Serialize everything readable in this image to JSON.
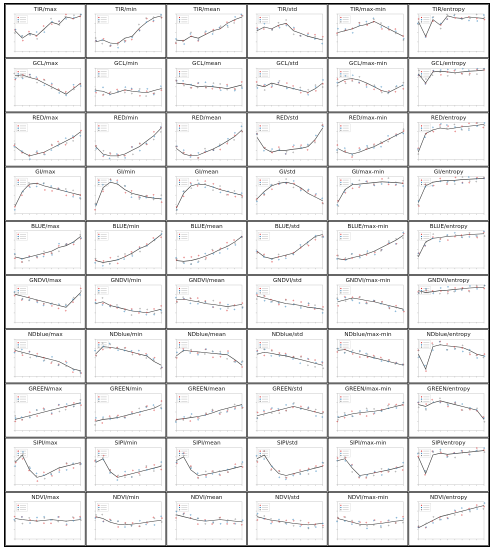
{
  "chart_data": {
    "type": "line",
    "layout": "grid",
    "rows": [
      "TIR",
      "GCL",
      "RED",
      "GI",
      "BLUE",
      "GNDVI",
      "NDblue",
      "GREEN",
      "SIPI",
      "NDVI"
    ],
    "columns": [
      "max",
      "min",
      "mean",
      "std",
      "max-min",
      "entropy"
    ],
    "titles": [
      [
        "TIR/max",
        "TIR/min",
        "TIR/mean",
        "TIR/std",
        "TIR/max-min",
        "TIR/entropy"
      ],
      [
        "GCL/max",
        "GCL/min",
        "GCL/mean",
        "GCL/std",
        "GCL/max-min",
        "GCL/entropy"
      ],
      [
        "RED/max",
        "RED/min",
        "RED/mean",
        "RED/std",
        "RED/max-min",
        "RED/entropy"
      ],
      [
        "GI/max",
        "GI/min",
        "GI/mean",
        "GI/std",
        "GI/max-min",
        "GI/entropy"
      ],
      [
        "BLUE/max",
        "BLUE/min",
        "BLUE/mean",
        "BLUE/std",
        "BLUE/max-min",
        "BLUE/entropy"
      ],
      [
        "GNDVI/max",
        "GNDVI/min",
        "GNDVI/mean",
        "GNDVI/std",
        "GNDVI/max-min",
        "GNDVI/entropy"
      ],
      [
        "NDblue/max",
        "NDblue/min",
        "NDblue/mean",
        "NDblue/std",
        "NDblue/max-min",
        "NDblue/entropy"
      ],
      [
        "GREEN/max",
        "GREEN/min",
        "GREEN/mean",
        "GREEN/std",
        "GREEN/max-min",
        "GREEN/entropy"
      ],
      [
        "SIPI/max",
        "SIPI/min",
        "SIPI/mean",
        "SIPI/std",
        "SIPI/max-min",
        "SIPI/entropy"
      ],
      [
        "NDVI/max",
        "NDVI/min",
        "NDVI/mean",
        "NDVI/std",
        "NDVI/max-min",
        "NDVI/entropy"
      ]
    ],
    "x": [
      1,
      2,
      3,
      4,
      5,
      6,
      7,
      8,
      9,
      10
    ],
    "ylim": [
      0,
      1
    ],
    "curves": [
      [
        [
          0.55,
          0.35,
          0.48,
          0.42,
          0.6,
          0.78,
          0.72,
          0.92,
          0.88,
          0.95
        ],
        [
          0.25,
          0.3,
          0.22,
          0.2,
          0.35,
          0.4,
          0.62,
          0.78,
          0.9,
          0.95
        ],
        [
          0.3,
          0.28,
          0.4,
          0.35,
          0.45,
          0.55,
          0.6,
          0.75,
          0.85,
          0.92
        ],
        [
          0.55,
          0.65,
          0.6,
          0.7,
          0.75,
          0.55,
          0.48,
          0.4,
          0.35,
          0.3
        ],
        [
          0.5,
          0.55,
          0.6,
          0.68,
          0.72,
          0.8,
          0.7,
          0.6,
          0.5,
          0.4
        ],
        [
          0.8,
          0.4,
          0.85,
          0.7,
          0.95,
          0.9,
          0.88,
          0.92,
          0.9,
          0.88
        ]
      ],
      [
        [
          0.8,
          0.82,
          0.75,
          0.7,
          0.6,
          0.5,
          0.4,
          0.3,
          0.45,
          0.6
        ],
        [
          0.4,
          0.38,
          0.3,
          0.35,
          0.42,
          0.38,
          0.36,
          0.34,
          0.4,
          0.45
        ],
        [
          0.6,
          0.58,
          0.55,
          0.5,
          0.52,
          0.5,
          0.48,
          0.45,
          0.5,
          0.55
        ],
        [
          0.55,
          0.5,
          0.6,
          0.55,
          0.5,
          0.45,
          0.4,
          0.35,
          0.45,
          0.6
        ],
        [
          0.6,
          0.7,
          0.72,
          0.68,
          0.6,
          0.5,
          0.4,
          0.35,
          0.45,
          0.55
        ],
        [
          0.85,
          0.6,
          0.9,
          0.92,
          0.9,
          0.88,
          0.9,
          0.92,
          0.93,
          0.95
        ]
      ],
      [
        [
          0.35,
          0.2,
          0.1,
          0.15,
          0.2,
          0.3,
          0.4,
          0.5,
          0.6,
          0.75
        ],
        [
          0.35,
          0.15,
          0.1,
          0.1,
          0.15,
          0.25,
          0.35,
          0.5,
          0.65,
          0.85
        ],
        [
          0.3,
          0.15,
          0.1,
          0.12,
          0.2,
          0.28,
          0.38,
          0.5,
          0.62,
          0.8
        ],
        [
          0.6,
          0.3,
          0.2,
          0.25,
          0.25,
          0.28,
          0.3,
          0.35,
          0.55,
          0.85
        ],
        [
          0.3,
          0.2,
          0.15,
          0.2,
          0.28,
          0.35,
          0.45,
          0.55,
          0.65,
          0.75
        ],
        [
          0.2,
          0.7,
          0.8,
          0.85,
          0.82,
          0.85,
          0.88,
          0.9,
          0.92,
          0.95
        ]
      ],
      [
        [
          0.2,
          0.6,
          0.8,
          0.82,
          0.75,
          0.7,
          0.65,
          0.6,
          0.55,
          0.5
        ],
        [
          0.2,
          0.7,
          0.85,
          0.8,
          0.65,
          0.55,
          0.5,
          0.45,
          0.42,
          0.4
        ],
        [
          0.15,
          0.55,
          0.75,
          0.8,
          0.78,
          0.72,
          0.65,
          0.6,
          0.55,
          0.5
        ],
        [
          0.4,
          0.6,
          0.75,
          0.82,
          0.85,
          0.8,
          0.7,
          0.55,
          0.45,
          0.35
        ],
        [
          0.3,
          0.65,
          0.78,
          0.8,
          0.82,
          0.84,
          0.86,
          0.85,
          0.84,
          0.82
        ],
        [
          0.3,
          0.75,
          0.85,
          0.88,
          0.9,
          0.9,
          0.92,
          0.93,
          0.94,
          0.95
        ]
      ],
      [
        [
          0.3,
          0.25,
          0.3,
          0.35,
          0.4,
          0.45,
          0.55,
          0.6,
          0.7,
          0.85
        ],
        [
          0.2,
          0.15,
          0.18,
          0.22,
          0.3,
          0.4,
          0.52,
          0.6,
          0.75,
          0.9
        ],
        [
          0.2,
          0.18,
          0.2,
          0.25,
          0.32,
          0.4,
          0.5,
          0.58,
          0.7,
          0.85
        ],
        [
          0.45,
          0.3,
          0.25,
          0.3,
          0.35,
          0.4,
          0.55,
          0.7,
          0.85,
          0.9
        ],
        [
          0.25,
          0.22,
          0.28,
          0.32,
          0.38,
          0.45,
          0.55,
          0.65,
          0.75,
          0.88
        ],
        [
          0.3,
          0.7,
          0.8,
          0.82,
          0.85,
          0.86,
          0.88,
          0.9,
          0.91,
          0.92
        ]
      ],
      [
        [
          0.75,
          0.7,
          0.65,
          0.6,
          0.55,
          0.5,
          0.45,
          0.4,
          0.6,
          0.8
        ],
        [
          0.5,
          0.55,
          0.45,
          0.4,
          0.35,
          0.3,
          0.28,
          0.25,
          0.3,
          0.35
        ],
        [
          0.6,
          0.62,
          0.58,
          0.55,
          0.5,
          0.48,
          0.45,
          0.42,
          0.45,
          0.48
        ],
        [
          0.7,
          0.65,
          0.6,
          0.55,
          0.5,
          0.48,
          0.45,
          0.4,
          0.38,
          0.35
        ],
        [
          0.55,
          0.6,
          0.65,
          0.62,
          0.58,
          0.55,
          0.5,
          0.45,
          0.4,
          0.35
        ],
        [
          0.85,
          0.8,
          0.82,
          0.85,
          0.86,
          0.88,
          0.9,
          0.92,
          0.93,
          0.94
        ]
      ],
      [
        [
          0.7,
          0.65,
          0.6,
          0.55,
          0.5,
          0.45,
          0.4,
          0.3,
          0.2,
          0.15
        ],
        [
          0.6,
          0.8,
          0.78,
          0.75,
          0.7,
          0.65,
          0.6,
          0.55,
          0.4,
          0.3
        ],
        [
          0.55,
          0.7,
          0.68,
          0.66,
          0.64,
          0.62,
          0.6,
          0.58,
          0.45,
          0.3
        ],
        [
          0.6,
          0.65,
          0.62,
          0.58,
          0.55,
          0.5,
          0.45,
          0.4,
          0.35,
          0.3
        ],
        [
          0.7,
          0.72,
          0.65,
          0.6,
          0.55,
          0.5,
          0.45,
          0.4,
          0.35,
          0.3
        ],
        [
          0.6,
          0.2,
          0.8,
          0.85,
          0.82,
          0.8,
          0.78,
          0.7,
          0.6,
          0.55
        ]
      ],
      [
        [
          0.3,
          0.35,
          0.4,
          0.45,
          0.5,
          0.55,
          0.6,
          0.65,
          0.7,
          0.75
        ],
        [
          0.25,
          0.3,
          0.32,
          0.35,
          0.4,
          0.45,
          0.5,
          0.55,
          0.6,
          0.7
        ],
        [
          0.3,
          0.32,
          0.35,
          0.38,
          0.42,
          0.48,
          0.55,
          0.6,
          0.65,
          0.7
        ],
        [
          0.4,
          0.45,
          0.5,
          0.55,
          0.6,
          0.65,
          0.6,
          0.55,
          0.5,
          0.45
        ],
        [
          0.35,
          0.4,
          0.45,
          0.48,
          0.5,
          0.52,
          0.55,
          0.6,
          0.65,
          0.7
        ],
        [
          0.7,
          0.65,
          0.75,
          0.8,
          0.75,
          0.7,
          0.65,
          0.6,
          0.55,
          0.3
        ]
      ],
      [
        [
          0.6,
          0.8,
          0.4,
          0.2,
          0.25,
          0.35,
          0.45,
          0.5,
          0.55,
          0.6
        ],
        [
          0.6,
          0.7,
          0.35,
          0.2,
          0.25,
          0.3,
          0.35,
          0.4,
          0.45,
          0.5
        ],
        [
          0.65,
          0.75,
          0.4,
          0.25,
          0.28,
          0.32,
          0.36,
          0.4,
          0.45,
          0.5
        ],
        [
          0.7,
          0.8,
          0.5,
          0.3,
          0.25,
          0.3,
          0.35,
          0.4,
          0.45,
          0.5
        ],
        [
          0.65,
          0.7,
          0.45,
          0.25,
          0.28,
          0.32,
          0.36,
          0.4,
          0.45,
          0.5
        ],
        [
          0.75,
          0.3,
          0.8,
          0.85,
          0.82,
          0.84,
          0.86,
          0.88,
          0.9,
          0.92
        ]
      ],
      [
        [
          0.55,
          0.52,
          0.5,
          0.48,
          0.5,
          0.52,
          0.5,
          0.48,
          0.5,
          0.52
        ],
        [
          0.6,
          0.55,
          0.45,
          0.4,
          0.38,
          0.4,
          0.42,
          0.45,
          0.48,
          0.5
        ],
        [
          0.65,
          0.6,
          0.55,
          0.5,
          0.48,
          0.5,
          0.52,
          0.5,
          0.48,
          0.46
        ],
        [
          0.6,
          0.55,
          0.5,
          0.48,
          0.45,
          0.42,
          0.4,
          0.38,
          0.4,
          0.42
        ],
        [
          0.55,
          0.5,
          0.45,
          0.4,
          0.38,
          0.4,
          0.42,
          0.45,
          0.48,
          0.5
        ],
        [
          0.3,
          0.4,
          0.5,
          0.6,
          0.65,
          0.7,
          0.75,
          0.8,
          0.85,
          0.9
        ]
      ]
    ],
    "marker_colors": [
      "#d62728",
      "#1f77b4",
      "#777777"
    ],
    "line_color": "#333333",
    "grid": false,
    "legend": "top-left"
  }
}
